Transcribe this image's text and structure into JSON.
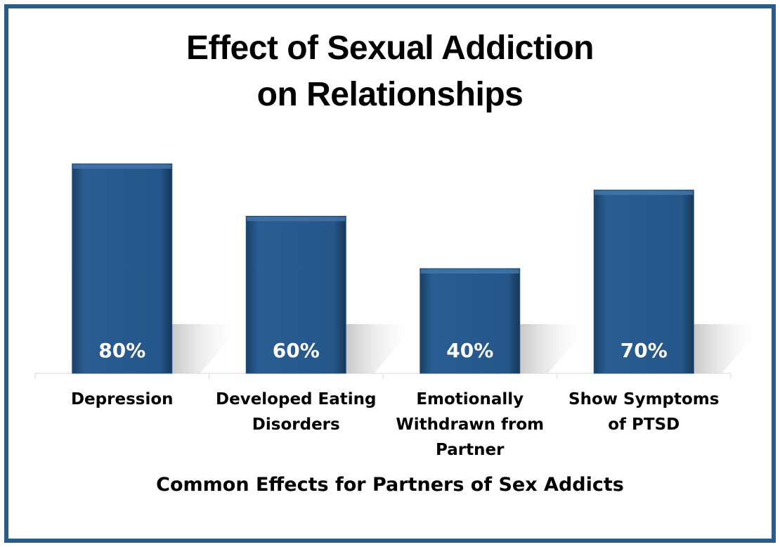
{
  "chart_data": {
    "type": "bar",
    "title": "Effect of Sexual Addiction on Relationships",
    "categories": [
      "Depression",
      "Developed Eating Disorders",
      "Emotionally Withdrawn from Partner",
      "Show Symptoms of PTSD"
    ],
    "values": [
      80,
      60,
      40,
      70
    ],
    "value_labels": [
      "80%",
      "60%",
      "40%",
      "70%"
    ],
    "color": "#25568a",
    "x_label": "Common Effects for Partners of Sex Addicts"
  }
}
